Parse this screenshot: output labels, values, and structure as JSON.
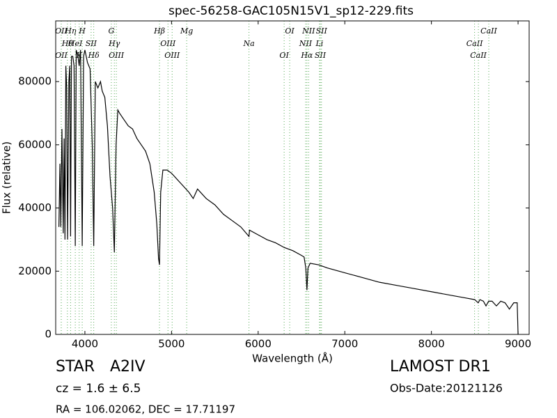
{
  "chart_data": {
    "type": "line",
    "title": "spec-56258-GAC105N15V1_sp12-229.fits",
    "x_label": "Wavelength (Å)",
    "y_label": "Flux (relative)",
    "xlim": [
      3663,
      9128
    ],
    "ylim": [
      0,
      99200
    ],
    "xticks": [
      4000,
      5000,
      6000,
      7000,
      8000,
      9000
    ],
    "yticks": [
      0,
      20000,
      40000,
      60000,
      80000
    ],
    "x": [
      3700,
      3712,
      3722,
      3735,
      3750,
      3760,
      3770,
      3780,
      3790,
      3800,
      3815,
      3825,
      3835,
      3845,
      3860,
      3875,
      3889,
      3900,
      3920,
      3934,
      3950,
      3969,
      3985,
      4000,
      4030,
      4060,
      4085,
      4102,
      4120,
      4150,
      4180,
      4200,
      4230,
      4260,
      4290,
      4320,
      4340,
      4360,
      4380,
      4400,
      4450,
      4500,
      4550,
      4600,
      4650,
      4700,
      4750,
      4800,
      4830,
      4850,
      4861,
      4875,
      4900,
      4950,
      5000,
      5100,
      5200,
      5250,
      5300,
      5400,
      5500,
      5600,
      5700,
      5800,
      5894,
      5900,
      6000,
      6100,
      6200,
      6300,
      6400,
      6500,
      6530,
      6550,
      6563,
      6575,
      6600,
      6700,
      6800,
      7000,
      7200,
      7400,
      7600,
      7800,
      8000,
      8200,
      8400,
      8500,
      8540,
      8560,
      8600,
      8630,
      8660,
      8700,
      8750,
      8800,
      8850,
      8900,
      8950,
      8990,
      9000
    ],
    "series": [
      {
        "name": "flux",
        "color": "#000000",
        "values": [
          34000,
          54000,
          34000,
          65000,
          32000,
          62000,
          30000,
          85000,
          78000,
          30000,
          80000,
          85000,
          31000,
          88000,
          88000,
          85000,
          28000,
          90000,
          88000,
          85000,
          90000,
          28000,
          88000,
          90000,
          86000,
          84000,
          60000,
          28000,
          80000,
          78000,
          80000,
          77000,
          75000,
          66000,
          50000,
          40000,
          26000,
          60000,
          71000,
          70000,
          68000,
          66000,
          65000,
          62000,
          60000,
          58000,
          54000,
          45000,
          35000,
          24000,
          22000,
          45000,
          52000,
          52000,
          51000,
          48000,
          45000,
          43000,
          46000,
          43000,
          41000,
          38000,
          36000,
          34000,
          31000,
          33000,
          31500,
          30000,
          29000,
          27500,
          26500,
          25000,
          24500,
          21000,
          14000,
          21000,
          22500,
          22000,
          21000,
          19500,
          18000,
          16500,
          15500,
          14500,
          13500,
          12500,
          11500,
          11000,
          10000,
          11000,
          10500,
          9000,
          10500,
          10500,
          9000,
          10500,
          10000,
          8000,
          10000,
          10000,
          0
        ]
      }
    ],
    "lines": [
      {
        "wavelength": 3727,
        "label": "OII"
      },
      {
        "wavelength": 3798,
        "label": "Hθ"
      },
      {
        "wavelength": 3727,
        "label": "OII"
      },
      {
        "wavelength": 3835,
        "label": "Hη"
      },
      {
        "wavelength": 3889,
        "label": "HeI"
      },
      {
        "wavelength": 3934,
        "label": "K"
      },
      {
        "wavelength": 3969,
        "label": "H"
      },
      {
        "wavelength": 4072,
        "label": "SII"
      },
      {
        "wavelength": 4102,
        "label": "Hδ"
      },
      {
        "wavelength": 4305,
        "label": "G"
      },
      {
        "wavelength": 4340,
        "label": "Hγ"
      },
      {
        "wavelength": 4363,
        "label": "OIII"
      },
      {
        "wavelength": 4861,
        "label": "Hβ"
      },
      {
        "wavelength": 4959,
        "label": "OIII"
      },
      {
        "wavelength": 5007,
        "label": "OIII"
      },
      {
        "wavelength": 5175,
        "label": "Mg"
      },
      {
        "wavelength": 5894,
        "label": "Na"
      },
      {
        "wavelength": 6300,
        "label": "OI"
      },
      {
        "wavelength": 6364,
        "label": "OI"
      },
      {
        "wavelength": 6548,
        "label": "NII"
      },
      {
        "wavelength": 6563,
        "label": "Hα"
      },
      {
        "wavelength": 6583,
        "label": "NII"
      },
      {
        "wavelength": 6708,
        "label": "Li"
      },
      {
        "wavelength": 6717,
        "label": "SII"
      },
      {
        "wavelength": 6731,
        "label": "SII"
      },
      {
        "wavelength": 8498,
        "label": "CaII"
      },
      {
        "wavelength": 8542,
        "label": "CaII"
      },
      {
        "wavelength": 8662,
        "label": "CaII"
      }
    ],
    "line_color": "#55aa55",
    "annotations": [
      "STAR",
      "A2IV",
      "LAMOST DR1",
      "cz = 1.6 ± 6.5",
      "Obs-Date:20121126",
      "RA = 106.02062, DEC = 17.71197"
    ]
  }
}
